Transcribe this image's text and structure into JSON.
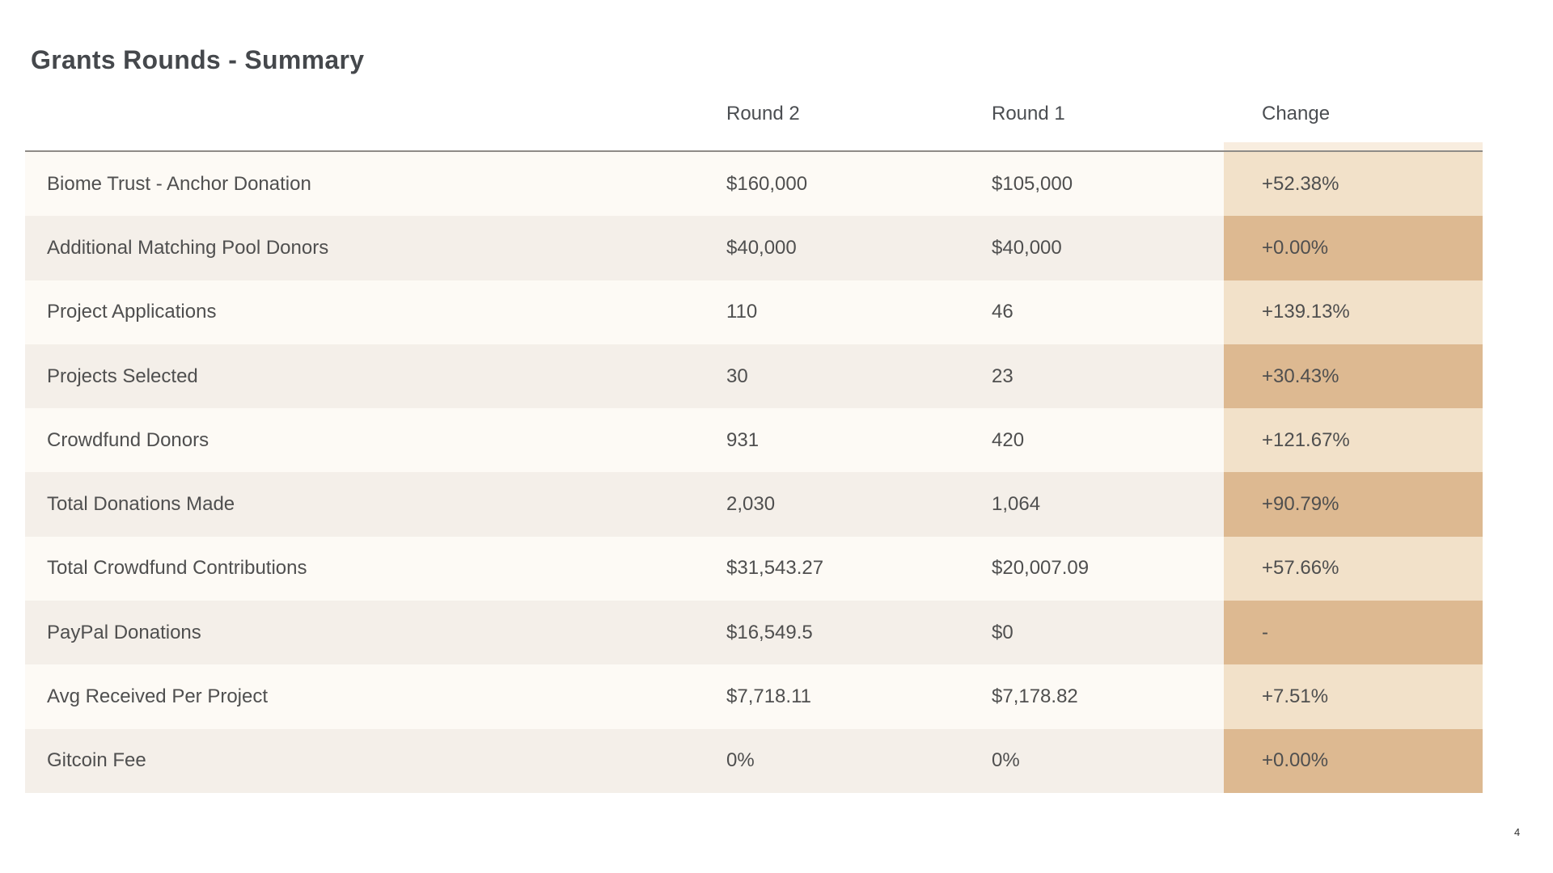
{
  "page": {
    "title": "Grants Rounds - Summary",
    "page_number": "4"
  },
  "table": {
    "headers": {
      "round2": "Round 2",
      "round1": "Round 1",
      "change": "Change"
    },
    "rows": [
      {
        "label": "Biome Trust - Anchor Donation",
        "round2": "$160,000",
        "round1": "$105,000",
        "change": "+52.38%"
      },
      {
        "label": "Additional Matching Pool Donors",
        "round2": "$40,000",
        "round1": "$40,000",
        "change": "+0.00%"
      },
      {
        "label": "Project Applications",
        "round2": "110",
        "round1": "46",
        "change": "+139.13%"
      },
      {
        "label": "Projects Selected",
        "round2": "30",
        "round1": "23",
        "change": "+30.43%"
      },
      {
        "label": "Crowdfund Donors",
        "round2": "931",
        "round1": "420",
        "change": "+121.67%"
      },
      {
        "label": "Total Donations Made",
        "round2": "2,030",
        "round1": "1,064",
        "change": "+90.79%"
      },
      {
        "label": "Total Crowdfund Contributions",
        "round2": "$31,543.27",
        "round1": "$20,007.09",
        "change": "+57.66%"
      },
      {
        "label": "PayPal Donations",
        "round2": "$16,549.5",
        "round1": "$0",
        "change": "-"
      },
      {
        "label": "Avg Received Per Project",
        "round2": "$7,718.11",
        "round1": "$7,178.82",
        "change": "+7.51%"
      },
      {
        "label": "Gitcoin Fee",
        "round2": "0%",
        "round1": "0%",
        "change": "+0.00%"
      }
    ]
  },
  "colors": {
    "row_odd": "#fdfaf5",
    "row_even": "#f4efe9",
    "change_odd": "#f2e1c9",
    "change_even": "#ddb991",
    "divider": "#8f8b87",
    "title_text": "#45484c",
    "body_text": "#4f4f4f"
  }
}
